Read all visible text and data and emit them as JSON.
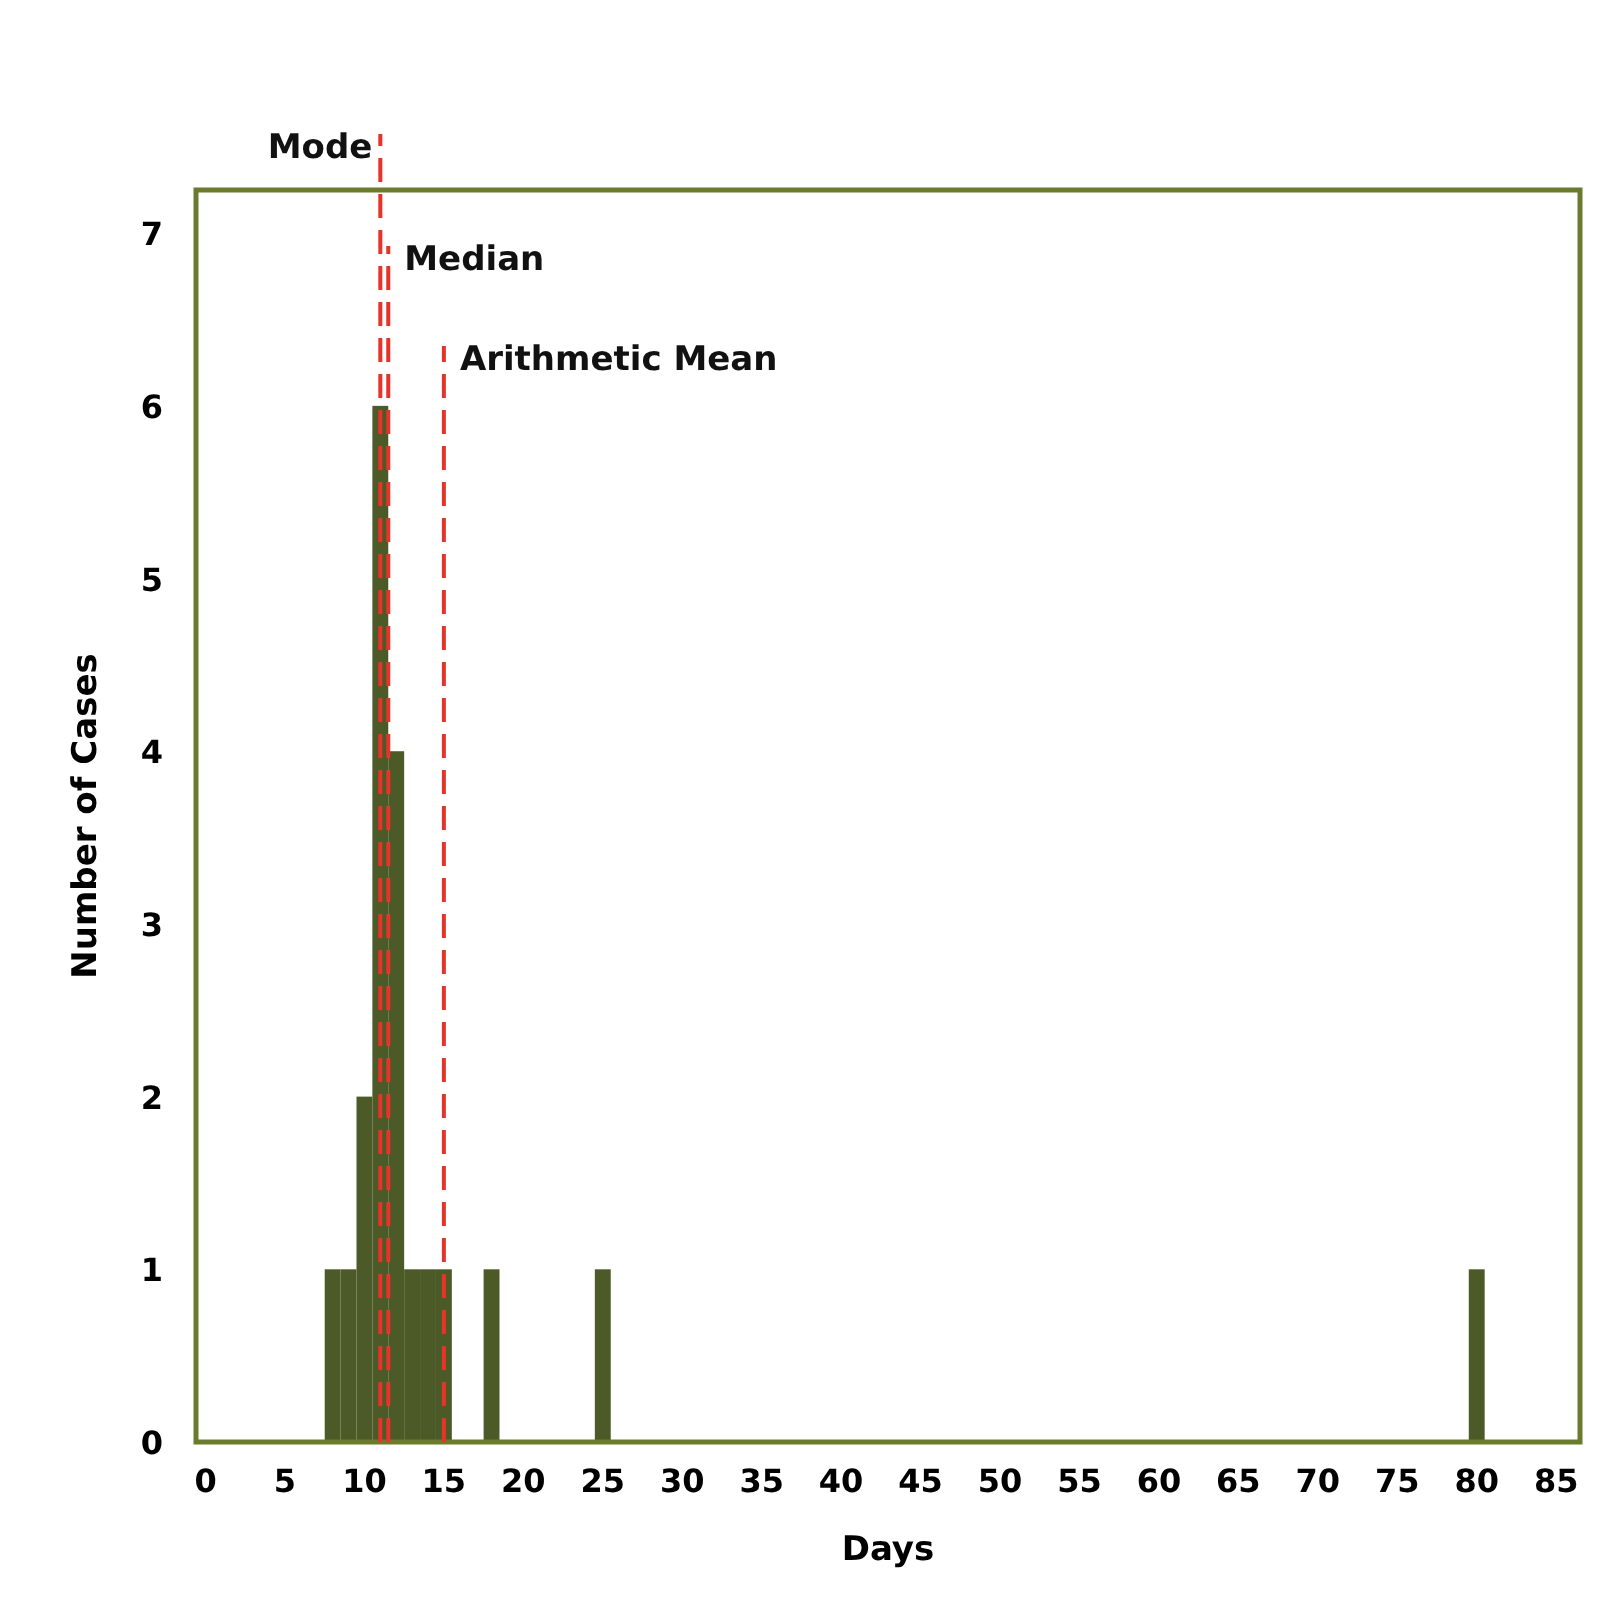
{
  "chart_data": {
    "type": "histogram",
    "xlabel": "Days",
    "ylabel": "Number of Cases",
    "bins": [
      7.5,
      8.5,
      9.5,
      10.5,
      11.5,
      12.5,
      13.5,
      14.5,
      15.5,
      17.5,
      18.5,
      24.5,
      25.5,
      79.5,
      80.5
    ],
    "values": [
      1,
      1,
      2,
      6,
      4,
      1,
      1,
      1,
      0,
      1,
      0,
      1,
      0,
      1
    ],
    "color": "#4b5a26",
    "xlim": [
      -0.6,
      86.5
    ],
    "xticks": [
      0,
      5,
      10,
      15,
      20,
      25,
      30,
      35,
      40,
      45,
      50,
      55,
      60,
      65,
      70,
      75,
      80,
      85
    ],
    "ylim": [
      0,
      7.25
    ],
    "yticks": [
      0,
      1,
      2,
      3,
      4,
      5,
      6,
      7
    ],
    "grid": false,
    "ref_lines": [
      {
        "axis": "x",
        "value": 11,
        "label": "Mode",
        "color": "#e8332a",
        "line_style": "dashed"
      },
      {
        "axis": "x",
        "value": 11.5,
        "label": "Median",
        "color": "#e8332a",
        "line_style": "dashed"
      },
      {
        "axis": "x",
        "value": 15,
        "label": "Arithmetic Mean",
        "color": "#e8332a",
        "line_style": "dashed"
      }
    ]
  }
}
